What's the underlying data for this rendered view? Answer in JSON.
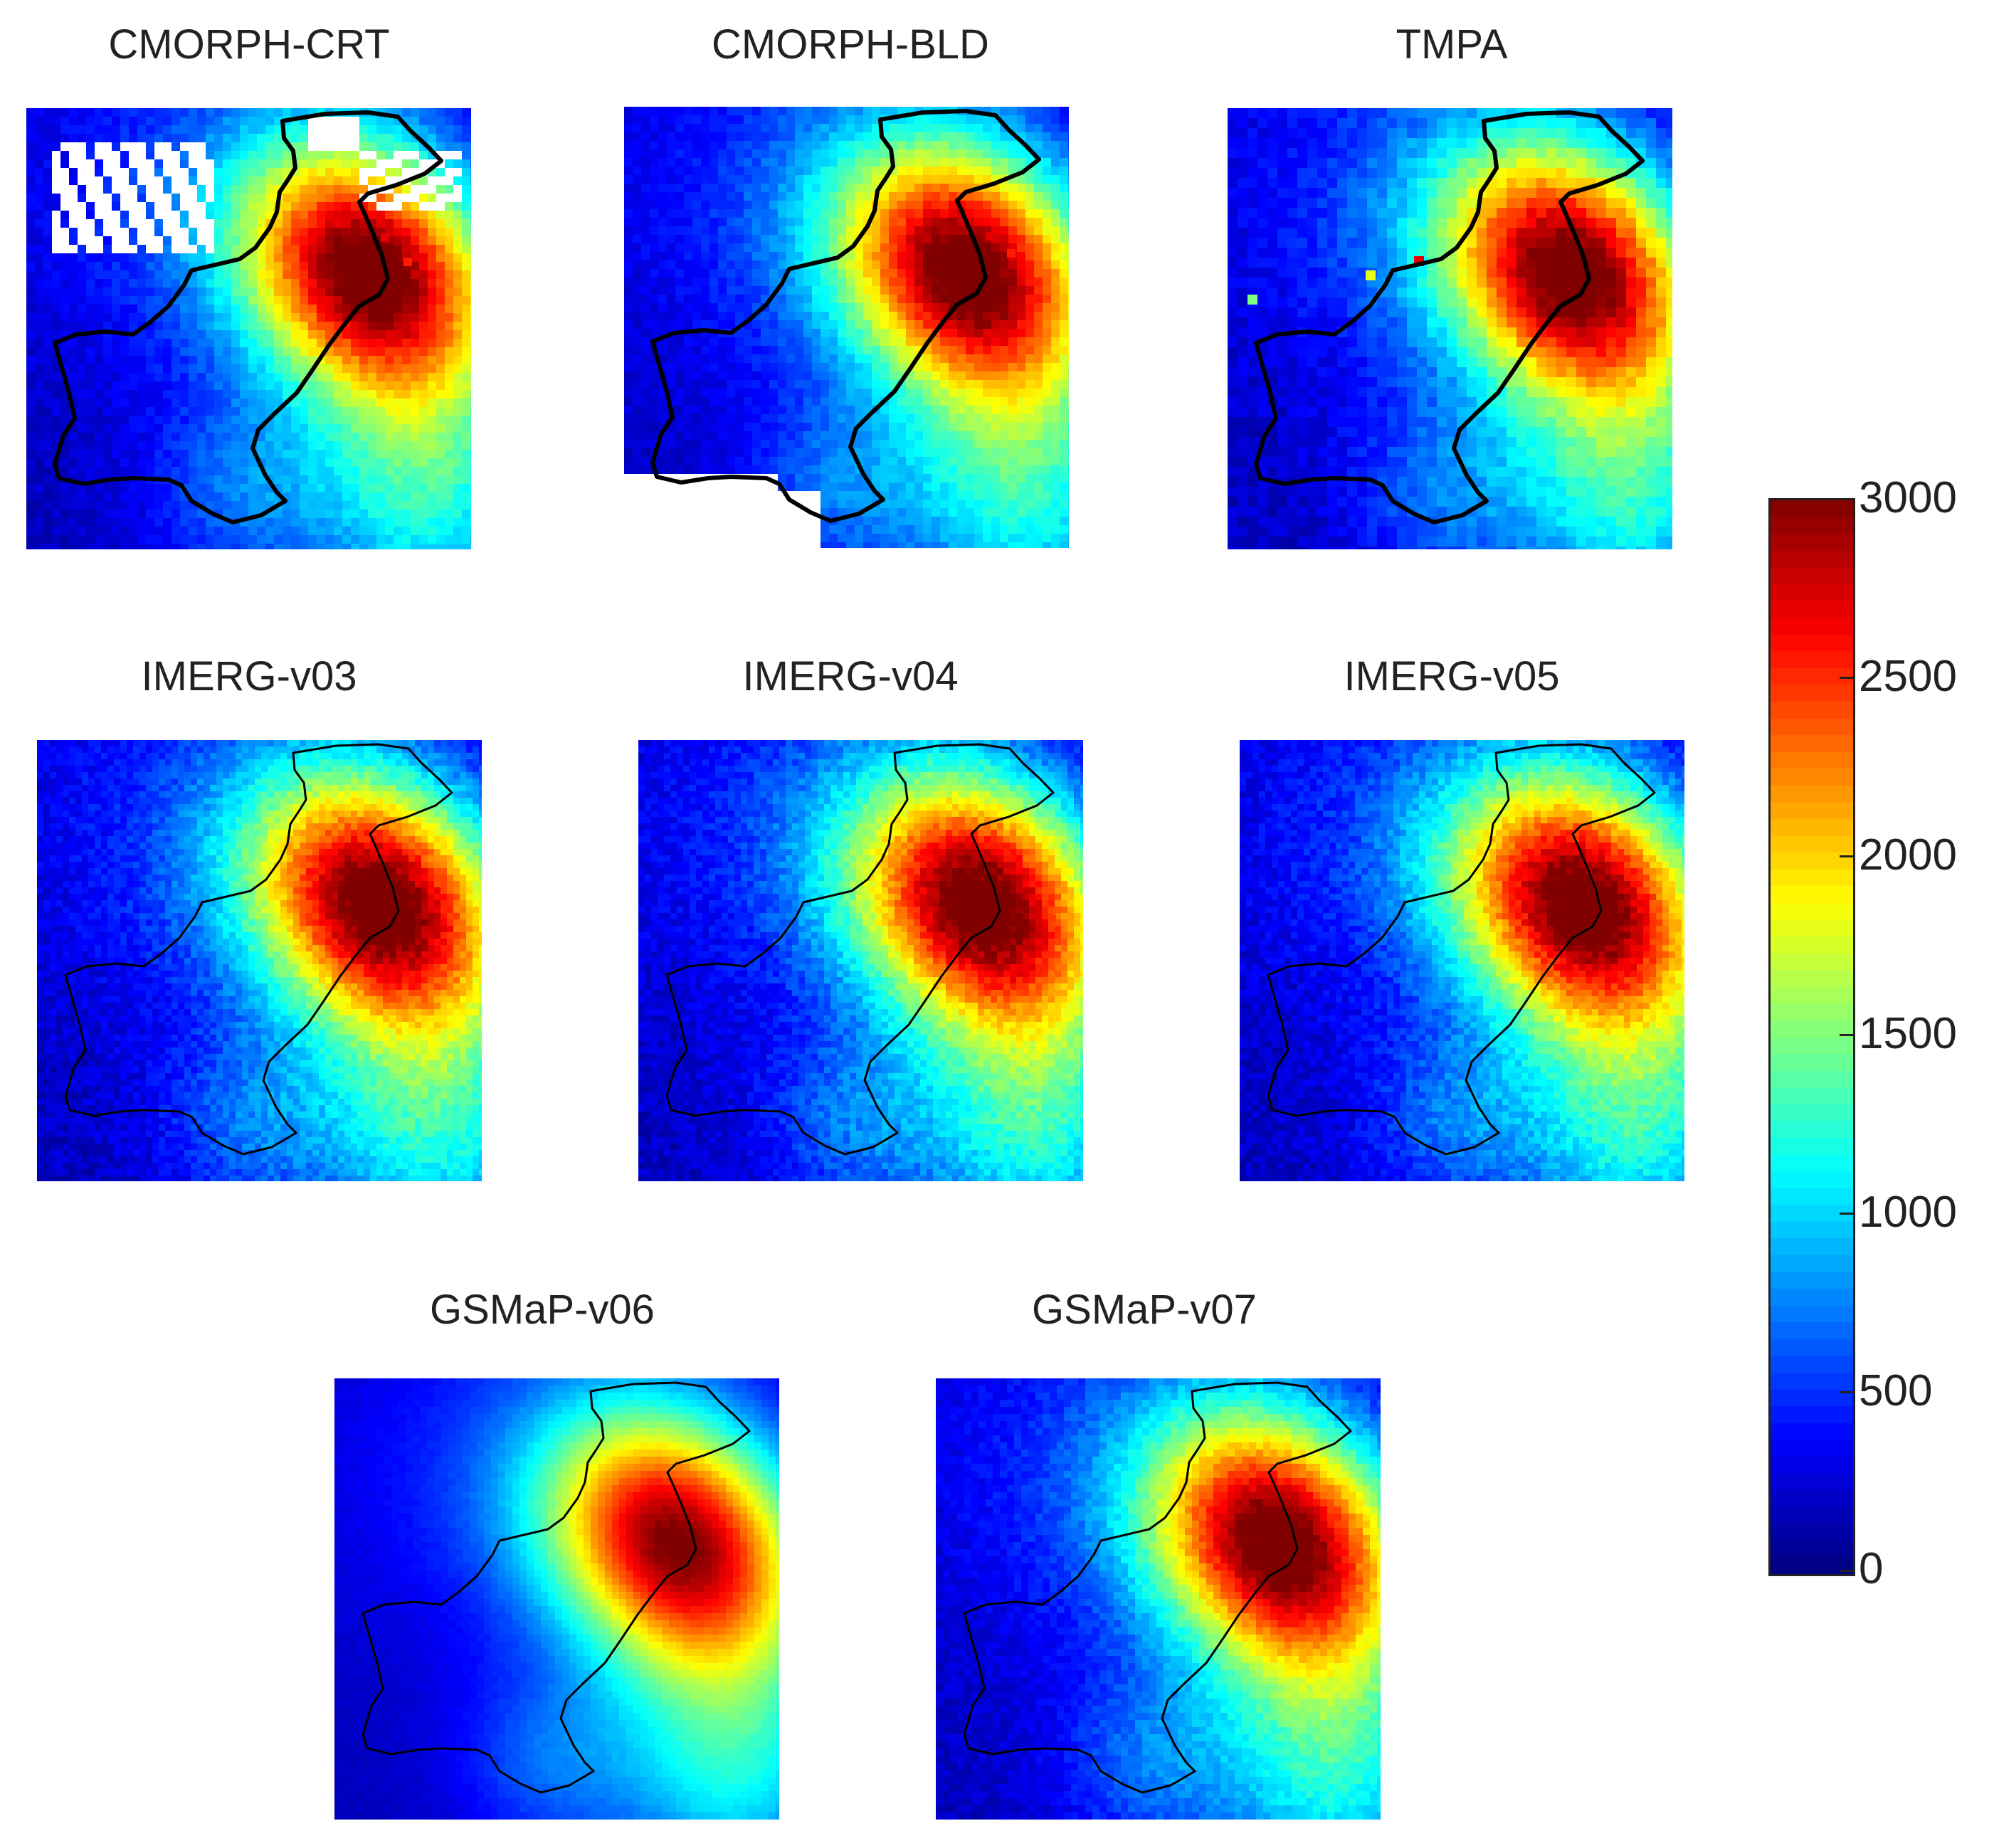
{
  "chart_data": {
    "type": "heatmap",
    "panels": [
      {
        "title": "CMORPH-CRT"
      },
      {
        "title": "CMORPH-BLD"
      },
      {
        "title": "TMPA"
      },
      {
        "title": "IMERG-v03"
      },
      {
        "title": "IMERG-v04"
      },
      {
        "title": "IMERG-v05"
      },
      {
        "title": "GSMaP-v06"
      },
      {
        "title": "GSMaP-v07"
      }
    ],
    "colorbar": {
      "min": 0,
      "max": 3000,
      "ticks": [
        "3000",
        "2500",
        "2000",
        "1500",
        "1000",
        "500",
        "0"
      ],
      "colormap": "jet"
    }
  },
  "colors": {
    "low": "#00008f",
    "mid": "#00ffff",
    "high": "#800000",
    "boundary": "#000000"
  }
}
